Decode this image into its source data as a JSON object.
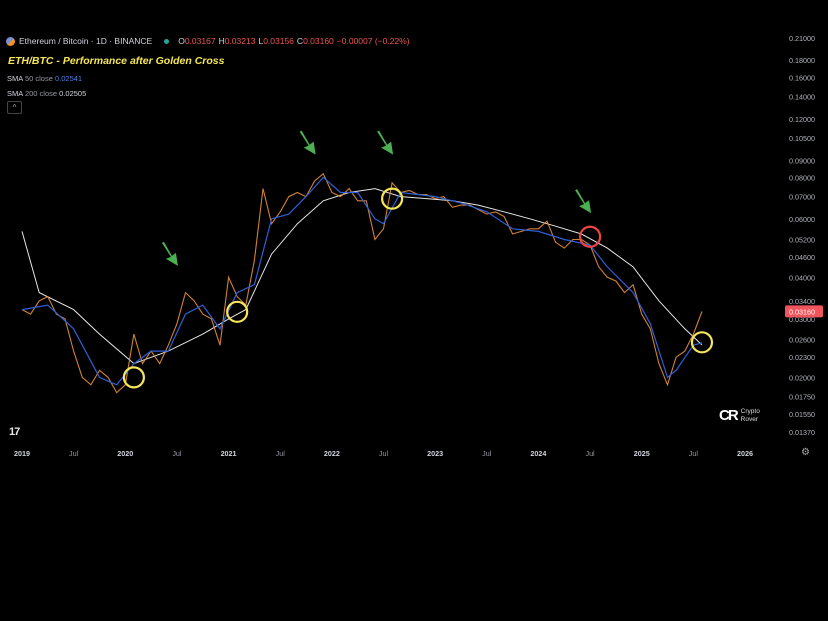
{
  "header": {
    "symbol": "Ethereum / Bitcoin · 1D · BINANCE",
    "open_label": "O",
    "open": "0.03167",
    "high_label": "H",
    "high": "0.03213",
    "low_label": "L",
    "low": "0.03156",
    "close_label": "C",
    "close": "0.03160",
    "change": "−0.00007 (−0.22%)"
  },
  "title": "ETH/BTC - Performance after Golden Cross",
  "indicators": {
    "sma50_label": "SMA",
    "sma50_period": "50 close",
    "sma50_value": "0.02541",
    "sma200_label": "SMA",
    "sma200_period": "200 close",
    "sma200_value": "0.02505"
  },
  "collapse_icon": "^",
  "brand": {
    "line1": "Crypto",
    "line2": "Rover",
    "logo": "CR"
  },
  "tv_logo": "17",
  "chart_data": {
    "type": "line",
    "title": "ETH/BTC - Performance after Golden Cross",
    "y_scale": "log",
    "y_ticks": [
      "0.21000",
      "0.18000",
      "0.16000",
      "0.14000",
      "0.12000",
      "0.10500",
      "0.09000",
      "0.08000",
      "0.07000",
      "0.06000",
      "0.05200",
      "0.04600",
      "0.04000",
      "0.03400",
      "0.03000",
      "0.02600",
      "0.02300",
      "0.02000",
      "0.01750",
      "0.01550",
      "0.01370"
    ],
    "x_ticks": [
      "2019",
      "Jul",
      "2020",
      "Jul",
      "2021",
      "Jul",
      "2022",
      "Jul",
      "2023",
      "Jul",
      "2024",
      "Jul",
      "2025",
      "Jul",
      "2026"
    ],
    "last_price": "0.03160",
    "colors": {
      "price": "#e8903a",
      "sma50": "#2f5fd6",
      "sma200": "#e6e6e6",
      "last_price_tag": "#f2545b",
      "golden_cross_circle": "#f5e65a",
      "death_cross_circle": "#ef4444",
      "arrow": "#4caf50"
    },
    "price": [
      [
        "2019-01",
        0.032
      ],
      [
        "2019-02",
        0.031
      ],
      [
        "2019-03",
        0.034
      ],
      [
        "2019-04",
        0.035
      ],
      [
        "2019-05",
        0.031
      ],
      [
        "2019-06",
        0.03
      ],
      [
        "2019-07",
        0.024
      ],
      [
        "2019-08",
        0.02
      ],
      [
        "2019-09",
        0.019
      ],
      [
        "2019-10",
        0.021
      ],
      [
        "2019-11",
        0.02
      ],
      [
        "2019-12",
        0.018
      ],
      [
        "2020-01",
        0.019
      ],
      [
        "2020-02",
        0.027
      ],
      [
        "2020-03",
        0.022
      ],
      [
        "2020-04",
        0.024
      ],
      [
        "2020-05",
        0.022
      ],
      [
        "2020-06",
        0.025
      ],
      [
        "2020-07",
        0.029
      ],
      [
        "2020-08",
        0.036
      ],
      [
        "2020-09",
        0.034
      ],
      [
        "2020-10",
        0.031
      ],
      [
        "2020-11",
        0.03
      ],
      [
        "2020-12",
        0.025
      ],
      [
        "2021-01",
        0.04
      ],
      [
        "2021-02",
        0.035
      ],
      [
        "2021-03",
        0.033
      ],
      [
        "2021-04",
        0.045
      ],
      [
        "2021-05",
        0.074
      ],
      [
        "2021-06",
        0.058
      ],
      [
        "2021-07",
        0.063
      ],
      [
        "2021-08",
        0.07
      ],
      [
        "2021-09",
        0.072
      ],
      [
        "2021-10",
        0.07
      ],
      [
        "2021-11",
        0.078
      ],
      [
        "2021-12",
        0.082
      ],
      [
        "2022-01",
        0.072
      ],
      [
        "2022-02",
        0.07
      ],
      [
        "2022-03",
        0.074
      ],
      [
        "2022-04",
        0.068
      ],
      [
        "2022-05",
        0.068
      ],
      [
        "2022-06",
        0.052
      ],
      [
        "2022-07",
        0.056
      ],
      [
        "2022-08",
        0.077
      ],
      [
        "2022-09",
        0.072
      ],
      [
        "2022-10",
        0.073
      ],
      [
        "2022-11",
        0.071
      ],
      [
        "2022-12",
        0.071
      ],
      [
        "2023-01",
        0.069
      ],
      [
        "2023-02",
        0.07
      ],
      [
        "2023-03",
        0.065
      ],
      [
        "2023-04",
        0.066
      ],
      [
        "2023-05",
        0.066
      ],
      [
        "2023-06",
        0.064
      ],
      [
        "2023-07",
        0.062
      ],
      [
        "2023-08",
        0.063
      ],
      [
        "2023-09",
        0.061
      ],
      [
        "2023-10",
        0.054
      ],
      [
        "2023-11",
        0.055
      ],
      [
        "2023-12",
        0.056
      ],
      [
        "2024-01",
        0.056
      ],
      [
        "2024-02",
        0.059
      ],
      [
        "2024-03",
        0.051
      ],
      [
        "2024-04",
        0.049
      ],
      [
        "2024-05",
        0.052
      ],
      [
        "2024-06",
        0.052
      ],
      [
        "2024-07",
        0.05
      ],
      [
        "2024-08",
        0.043
      ],
      [
        "2024-09",
        0.04
      ],
      [
        "2024-10",
        0.039
      ],
      [
        "2024-11",
        0.036
      ],
      [
        "2024-12",
        0.038
      ],
      [
        "2025-01",
        0.031
      ],
      [
        "2025-02",
        0.028
      ],
      [
        "2025-03",
        0.022
      ],
      [
        "2025-04",
        0.019
      ],
      [
        "2025-05",
        0.023
      ],
      [
        "2025-06",
        0.024
      ],
      [
        "2025-07",
        0.027
      ],
      [
        "2025-08",
        0.0316
      ]
    ],
    "sma50": [
      [
        "2019-01",
        0.032
      ],
      [
        "2019-04",
        0.033
      ],
      [
        "2019-07",
        0.028
      ],
      [
        "2019-10",
        0.02
      ],
      [
        "2019-12",
        0.019
      ],
      [
        "2020-02",
        0.022
      ],
      [
        "2020-04",
        0.024
      ],
      [
        "2020-06",
        0.024
      ],
      [
        "2020-08",
        0.031
      ],
      [
        "2020-10",
        0.033
      ],
      [
        "2020-12",
        0.028
      ],
      [
        "2021-02",
        0.036
      ],
      [
        "2021-04",
        0.038
      ],
      [
        "2021-06",
        0.06
      ],
      [
        "2021-08",
        0.062
      ],
      [
        "2021-10",
        0.07
      ],
      [
        "2021-12",
        0.08
      ],
      [
        "2022-02",
        0.072
      ],
      [
        "2022-04",
        0.072
      ],
      [
        "2022-06",
        0.06
      ],
      [
        "2022-07",
        0.058
      ],
      [
        "2022-09",
        0.072
      ],
      [
        "2022-11",
        0.071
      ],
      [
        "2023-01",
        0.07
      ],
      [
        "2023-04",
        0.067
      ],
      [
        "2023-07",
        0.063
      ],
      [
        "2023-10",
        0.056
      ],
      [
        "2024-01",
        0.055
      ],
      [
        "2024-04",
        0.052
      ],
      [
        "2024-07",
        0.05
      ],
      [
        "2024-09",
        0.043
      ],
      [
        "2024-12",
        0.036
      ],
      [
        "2025-02",
        0.029
      ],
      [
        "2025-04",
        0.02
      ],
      [
        "2025-05",
        0.021
      ],
      [
        "2025-07",
        0.025
      ],
      [
        "2025-08",
        0.02541
      ]
    ],
    "sma200": [
      [
        "2019-01",
        0.055
      ],
      [
        "2019-03",
        0.036
      ],
      [
        "2019-07",
        0.032
      ],
      [
        "2019-10",
        0.027
      ],
      [
        "2020-02",
        0.022
      ],
      [
        "2020-06",
        0.024
      ],
      [
        "2020-10",
        0.027
      ],
      [
        "2021-01",
        0.03
      ],
      [
        "2021-03",
        0.032
      ],
      [
        "2021-06",
        0.047
      ],
      [
        "2021-09",
        0.058
      ],
      [
        "2021-12",
        0.068
      ],
      [
        "2022-03",
        0.072
      ],
      [
        "2022-06",
        0.074
      ],
      [
        "2022-09",
        0.07
      ],
      [
        "2022-12",
        0.069
      ],
      [
        "2023-03",
        0.068
      ],
      [
        "2023-06",
        0.066
      ],
      [
        "2023-09",
        0.063
      ],
      [
        "2023-12",
        0.06
      ],
      [
        "2024-03",
        0.057
      ],
      [
        "2024-06",
        0.054
      ],
      [
        "2024-09",
        0.049
      ],
      [
        "2024-12",
        0.043
      ],
      [
        "2025-03",
        0.034
      ],
      [
        "2025-06",
        0.028
      ],
      [
        "2025-08",
        0.02505
      ]
    ],
    "golden_cross_markers": [
      [
        "2020-02",
        0.02
      ],
      [
        "2021-02",
        0.0315
      ],
      [
        "2022-08",
        0.069
      ],
      [
        "2025-08",
        0.0255
      ]
    ],
    "death_cross_markers": [
      [
        "2024-07",
        0.053
      ]
    ],
    "arrow_markers": [
      [
        "2020-07",
        0.043
      ],
      [
        "2021-11",
        0.093
      ],
      [
        "2022-08",
        0.093
      ],
      [
        "2024-07",
        0.062
      ]
    ]
  }
}
